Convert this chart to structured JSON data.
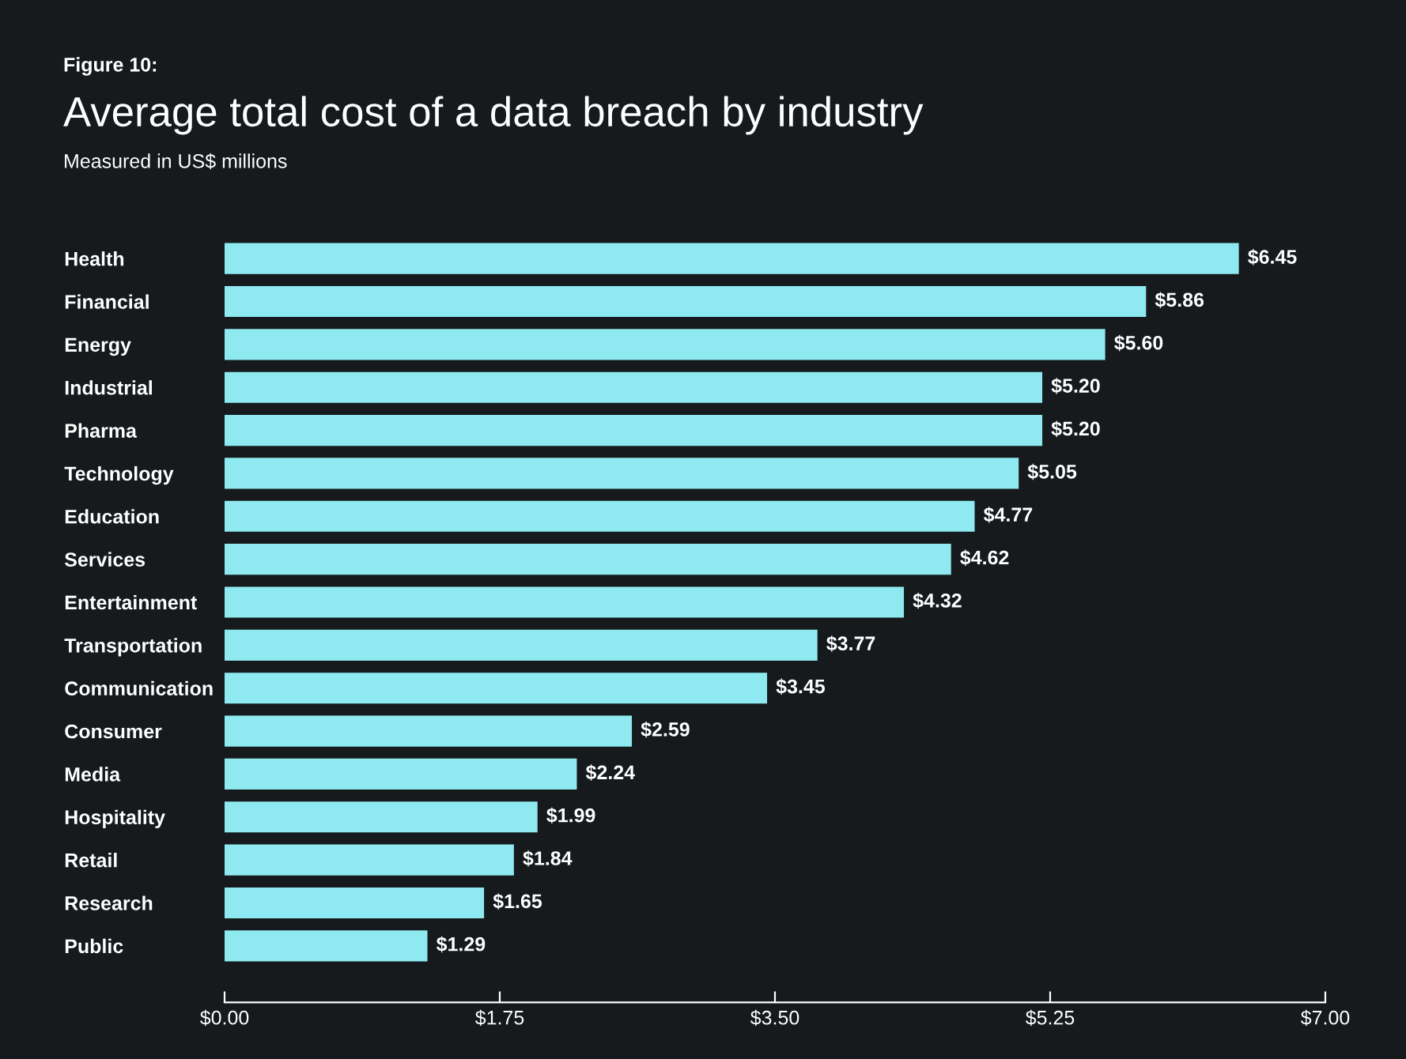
{
  "chart_data": {
    "type": "bar",
    "orientation": "horizontal",
    "annotations": [
      "Figure 10:"
    ],
    "title": "Average total cost of a data breach by industry",
    "subtitle": "Measured in US$ millions",
    "categories": [
      "Health",
      "Financial",
      "Energy",
      "Industrial",
      "Pharma",
      "Technology",
      "Education",
      "Services",
      "Entertainment",
      "Transportation",
      "Communication",
      "Consumer",
      "Media",
      "Hospitality",
      "Retail",
      "Research",
      "Public"
    ],
    "values": [
      6.45,
      5.86,
      5.6,
      5.2,
      5.2,
      5.05,
      4.77,
      4.62,
      4.32,
      3.77,
      3.45,
      2.59,
      2.24,
      1.99,
      1.84,
      1.65,
      1.29
    ],
    "value_labels": [
      "$6.45",
      "$5.86",
      "$5.60",
      "$5.20",
      "$5.20",
      "$5.05",
      "$4.77",
      "$4.62",
      "$4.32",
      "$3.77",
      "$3.45",
      "$2.59",
      "$2.24",
      "$1.99",
      "$1.84",
      "$1.65",
      "$1.29"
    ],
    "color": "#8eeaf0",
    "xlim": [
      0,
      7
    ],
    "xticks": [
      {
        "value": 0,
        "label": "$0.00"
      },
      {
        "value": 1.75,
        "label": "$1.75"
      },
      {
        "value": 3.5,
        "label": "$3.50"
      },
      {
        "value": 5.25,
        "label": "$5.25"
      },
      {
        "value": 7,
        "label": "$7.00"
      }
    ],
    "grid": false,
    "legend": false
  }
}
